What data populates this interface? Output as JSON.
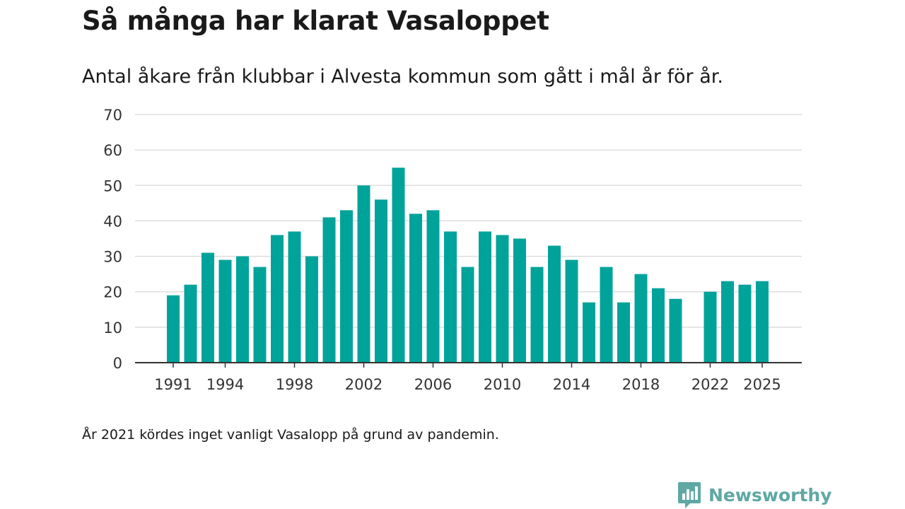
{
  "header": {
    "title": "Så många har klarat Vasaloppet",
    "subtitle": "Antal åkare från klubbar i Alvesta kommun som gått i mål år för år."
  },
  "footer": {
    "note": "År 2021 kördes inget vanligt Vasalopp på grund av pandemin.",
    "brand": "Newsworthy"
  },
  "colors": {
    "bar": "#00a39a",
    "grid": "#dddddd",
    "axis": "#333333",
    "brand": "#5fa8a4"
  },
  "chart_data": {
    "type": "bar",
    "title": "Så många har klarat Vasaloppet",
    "subtitle": "Antal åkare från klubbar i Alvesta kommun som gått i mål år för år.",
    "xlabel": "",
    "ylabel": "",
    "ylim": [
      0,
      70
    ],
    "yticks": [
      0,
      10,
      20,
      30,
      40,
      50,
      60,
      70
    ],
    "xticks": [
      1991,
      1994,
      1998,
      2002,
      2006,
      2010,
      2014,
      2018,
      2022,
      2025
    ],
    "grid": true,
    "x": [
      1991,
      1992,
      1993,
      1994,
      1995,
      1996,
      1997,
      1998,
      1999,
      2000,
      2001,
      2002,
      2003,
      2004,
      2005,
      2006,
      2007,
      2008,
      2009,
      2010,
      2011,
      2012,
      2013,
      2014,
      2015,
      2016,
      2017,
      2018,
      2019,
      2020,
      2021,
      2022,
      2023,
      2024,
      2025
    ],
    "values": [
      19,
      22,
      31,
      29,
      30,
      27,
      36,
      37,
      30,
      41,
      43,
      50,
      46,
      55,
      42,
      43,
      37,
      27,
      37,
      36,
      35,
      27,
      33,
      29,
      17,
      27,
      17,
      25,
      21,
      18,
      null,
      20,
      23,
      22,
      23
    ]
  }
}
